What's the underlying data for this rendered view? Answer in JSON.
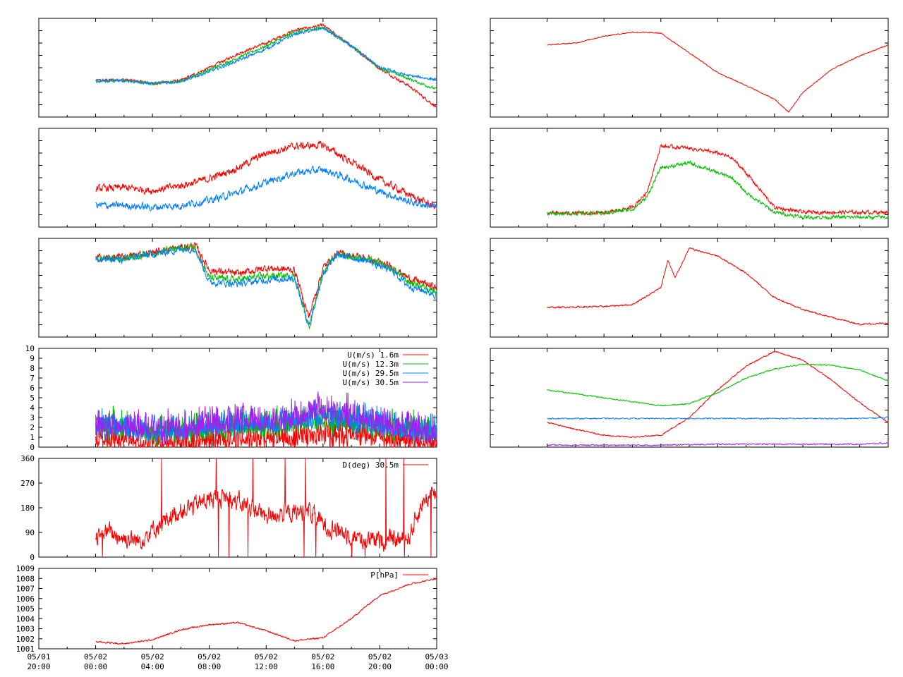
{
  "colors": {
    "red": "#ff0000",
    "green": "#00c000",
    "blue": "#0080ff",
    "purple": "#a020f0",
    "axis": "#000000",
    "background": "#ffffff"
  },
  "chart_data": [
    {
      "type": "line",
      "panel": "left-1",
      "title": "",
      "xlim": [
        "05/01 20:00",
        "05/03 00:00"
      ],
      "ylim": [
        0,
        1
      ],
      "tick_labels_shown": false,
      "series": [
        {
          "color": "red",
          "x": [
            "05/02 00:00",
            "05/02 02:00",
            "05/02 04:00",
            "05/02 06:00",
            "05/02 08:00",
            "05/02 10:00",
            "05/02 12:00",
            "05/02 14:00",
            "05/02 16:00",
            "05/02 18:00",
            "05/02 20:00",
            "05/02 22:00",
            "05/03 00:00"
          ],
          "values": [
            0.37,
            0.38,
            0.34,
            0.37,
            0.5,
            0.64,
            0.75,
            0.88,
            0.93,
            0.72,
            0.49,
            0.32,
            0.1
          ]
        },
        {
          "color": "green",
          "x": [
            "05/02 00:00",
            "05/02 02:00",
            "05/02 04:00",
            "05/02 06:00",
            "05/02 08:00",
            "05/02 10:00",
            "05/02 12:00",
            "05/02 14:00",
            "05/02 16:00",
            "05/02 18:00",
            "05/02 20:00",
            "05/02 22:00",
            "05/03 00:00"
          ],
          "values": [
            0.36,
            0.37,
            0.34,
            0.36,
            0.48,
            0.6,
            0.72,
            0.86,
            0.91,
            0.72,
            0.5,
            0.39,
            0.28
          ]
        },
        {
          "color": "blue",
          "x": [
            "05/02 00:00",
            "05/02 02:00",
            "05/02 04:00",
            "05/02 06:00",
            "05/02 08:00",
            "05/02 10:00",
            "05/02 12:00",
            "05/02 14:00",
            "05/02 16:00",
            "05/02 18:00",
            "05/02 20:00",
            "05/02 22:00",
            "05/03 00:00"
          ],
          "values": [
            0.36,
            0.37,
            0.34,
            0.36,
            0.46,
            0.57,
            0.69,
            0.84,
            0.9,
            0.72,
            0.5,
            0.42,
            0.38
          ]
        }
      ]
    },
    {
      "type": "line",
      "panel": "left-2",
      "title": "",
      "xlim": [
        "05/01 20:00",
        "05/03 00:00"
      ],
      "ylim": [
        0,
        1
      ],
      "tick_labels_shown": false,
      "series": [
        {
          "color": "red",
          "x": [
            "05/02 00:00",
            "05/02 02:00",
            "05/02 04:00",
            "05/02 06:00",
            "05/02 08:00",
            "05/02 10:00",
            "05/02 12:00",
            "05/02 14:00",
            "05/02 16:00",
            "05/02 18:00",
            "05/02 20:00",
            "05/02 22:00",
            "05/03 00:00"
          ],
          "values": [
            0.39,
            0.4,
            0.37,
            0.42,
            0.49,
            0.6,
            0.75,
            0.82,
            0.83,
            0.66,
            0.48,
            0.33,
            0.2
          ]
        },
        {
          "color": "blue",
          "x": [
            "05/02 00:00",
            "05/02 02:00",
            "05/02 04:00",
            "05/02 06:00",
            "05/02 08:00",
            "05/02 10:00",
            "05/02 12:00",
            "05/02 14:00",
            "05/02 16:00",
            "05/02 18:00",
            "05/02 20:00",
            "05/02 22:00",
            "05/03 00:00"
          ],
          "values": [
            0.22,
            0.22,
            0.2,
            0.22,
            0.27,
            0.35,
            0.45,
            0.55,
            0.58,
            0.48,
            0.36,
            0.26,
            0.2
          ]
        }
      ]
    },
    {
      "type": "line",
      "panel": "left-3",
      "title": "",
      "xlim": [
        "05/01 20:00",
        "05/03 00:00"
      ],
      "ylim": [
        0,
        1
      ],
      "tick_labels_shown": false,
      "series": [
        {
          "color": "red",
          "x": [
            "05/02 00:00",
            "05/02 02:00",
            "05/02 04:00",
            "05/02 06:00",
            "05/02 07:00",
            "05/02 08:00",
            "05/02 10:00",
            "05/02 12:00",
            "05/02 14:00",
            "05/02 15:00",
            "05/02 16:00",
            "05/02 17:00",
            "05/02 19:00",
            "05/02 21:00",
            "05/02 22:00",
            "05/03 00:00"
          ],
          "values": [
            0.8,
            0.81,
            0.86,
            0.91,
            0.93,
            0.68,
            0.64,
            0.7,
            0.68,
            0.2,
            0.7,
            0.85,
            0.8,
            0.7,
            0.6,
            0.5
          ]
        },
        {
          "color": "green",
          "x": [
            "05/02 00:00",
            "05/02 02:00",
            "05/02 04:00",
            "05/02 06:00",
            "05/02 07:00",
            "05/02 08:00",
            "05/02 10:00",
            "05/02 12:00",
            "05/02 14:00",
            "05/02 15:00",
            "05/02 16:00",
            "05/02 17:00",
            "05/02 19:00",
            "05/02 21:00",
            "05/02 22:00",
            "05/03 00:00"
          ],
          "values": [
            0.79,
            0.8,
            0.85,
            0.9,
            0.91,
            0.6,
            0.58,
            0.62,
            0.62,
            0.1,
            0.66,
            0.84,
            0.79,
            0.68,
            0.56,
            0.47
          ]
        },
        {
          "color": "blue",
          "x": [
            "05/02 00:00",
            "05/02 02:00",
            "05/02 04:00",
            "05/02 06:00",
            "05/02 07:00",
            "05/02 08:00",
            "05/02 10:00",
            "05/02 12:00",
            "05/02 14:00",
            "05/02 15:00",
            "05/02 16:00",
            "05/02 17:00",
            "05/02 19:00",
            "05/02 21:00",
            "05/02 22:00",
            "05/03 00:00"
          ],
          "values": [
            0.78,
            0.79,
            0.84,
            0.89,
            0.9,
            0.56,
            0.54,
            0.58,
            0.6,
            0.12,
            0.64,
            0.83,
            0.78,
            0.66,
            0.52,
            0.43
          ]
        }
      ]
    },
    {
      "type": "line",
      "panel": "left-4",
      "title": "",
      "xlim": [
        "05/01 20:00",
        "05/03 00:00"
      ],
      "ylim": [
        0,
        10
      ],
      "yticks": [
        0,
        1,
        2,
        3,
        4,
        5,
        6,
        7,
        8,
        9,
        10
      ],
      "legend_position": "top-right",
      "series": [
        {
          "name": "U(m/s)  1.6m",
          "color": "red",
          "x": [
            "05/02 00:00",
            "05/02 02:00",
            "05/02 04:00",
            "05/02 06:00",
            "05/02 08:00",
            "05/02 10:00",
            "05/02 12:00",
            "05/02 14:00",
            "05/02 16:00",
            "05/02 18:00",
            "05/02 20:00",
            "05/02 22:00",
            "05/03 00:00"
          ],
          "values": [
            0.8,
            0.7,
            0.6,
            0.5,
            0.6,
            0.8,
            0.8,
            0.9,
            1.2,
            1.3,
            1.0,
            0.6,
            0.5
          ]
        },
        {
          "name": "U(m/s) 12.3m",
          "color": "green",
          "x": [
            "05/02 00:00",
            "05/02 02:00",
            "05/02 04:00",
            "05/02 06:00",
            "05/02 08:00",
            "05/02 10:00",
            "05/02 12:00",
            "05/02 14:00",
            "05/02 16:00",
            "05/02 18:00",
            "05/02 20:00",
            "05/02 22:00",
            "05/03 00:00"
          ],
          "values": [
            1.9,
            1.8,
            1.4,
            1.5,
            1.8,
            2.1,
            2.0,
            2.2,
            2.6,
            2.4,
            2.0,
            1.6,
            1.2
          ]
        },
        {
          "name": "U(m/s) 29.5m",
          "color": "blue",
          "x": [
            "05/02 00:00",
            "05/02 02:00",
            "05/02 04:00",
            "05/02 06:00",
            "05/02 08:00",
            "05/02 10:00",
            "05/02 12:00",
            "05/02 14:00",
            "05/02 16:00",
            "05/02 18:00",
            "05/02 20:00",
            "05/02 22:00",
            "05/03 00:00"
          ],
          "values": [
            2.0,
            1.9,
            1.5,
            1.6,
            1.9,
            2.3,
            2.2,
            2.5,
            2.9,
            2.7,
            2.2,
            1.7,
            1.3
          ]
        },
        {
          "name": "U(m/s) 30.5m",
          "color": "purple",
          "x": [
            "05/02 00:00",
            "05/02 02:00",
            "05/02 04:00",
            "05/02 06:00",
            "05/02 08:00",
            "05/02 10:00",
            "05/02 12:00",
            "05/02 14:00",
            "05/02 16:00",
            "05/02 18:00",
            "05/02 20:00",
            "05/02 22:00",
            "05/03 00:00"
          ],
          "values": [
            2.1,
            2.0,
            1.6,
            1.7,
            2.1,
            2.6,
            2.4,
            2.9,
            3.6,
            3.3,
            2.3,
            1.8,
            1.3
          ]
        }
      ]
    },
    {
      "type": "line",
      "panel": "left-5",
      "title": "",
      "xlim": [
        "05/01 20:00",
        "05/03 00:00"
      ],
      "ylim": [
        0,
        360
      ],
      "yticks": [
        0,
        90,
        180,
        270,
        360
      ],
      "legend_position": "top-right",
      "series": [
        {
          "name": "D(deg)  30.5m",
          "color": "red",
          "x": [
            "05/02 00:00",
            "05/02 01:00",
            "05/02 02:00",
            "05/02 03:00",
            "05/02 04:00",
            "05/02 05:00",
            "05/02 06:00",
            "05/02 07:00",
            "05/02 08:00",
            "05/02 09:00",
            "05/02 10:00",
            "05/02 11:00",
            "05/02 12:00",
            "05/02 13:00",
            "05/02 14:00",
            "05/02 15:00",
            "05/02 16:00",
            "05/02 17:00",
            "05/02 18:00",
            "05/02 19:00",
            "05/02 20:00",
            "05/02 21:00",
            "05/02 22:00",
            "05/02 23:00",
            "05/03 00:00"
          ],
          "values": [
            85,
            90,
            70,
            60,
            100,
            140,
            170,
            190,
            210,
            220,
            200,
            180,
            150,
            160,
            160,
            170,
            120,
            100,
            80,
            60,
            60,
            60,
            70,
            200,
            240
          ]
        }
      ]
    },
    {
      "type": "line",
      "panel": "left-6",
      "title": "",
      "xlim": [
        "05/01 20:00",
        "05/03 00:00"
      ],
      "ylim": [
        1001,
        1009
      ],
      "yticks": [
        1001,
        1002,
        1003,
        1004,
        1005,
        1006,
        1007,
        1008,
        1009
      ],
      "xticks": [
        "05/01\n20:00",
        "05/02\n00:00",
        "05/02\n04:00",
        "05/02\n08:00",
        "05/02\n12:00",
        "05/02\n16:00",
        "05/02\n20:00",
        "05/03\n00:00"
      ],
      "legend_position": "top-right",
      "series": [
        {
          "name": "P[hPa]",
          "color": "red",
          "x": [
            "05/02 00:00",
            "05/02 02:00",
            "05/02 04:00",
            "05/02 06:00",
            "05/02 08:00",
            "05/02 10:00",
            "05/02 12:00",
            "05/02 14:00",
            "05/02 16:00",
            "05/02 18:00",
            "05/02 19:00",
            "05/02 20:00",
            "05/02 22:00",
            "05/03 00:00"
          ],
          "values": [
            1001.7,
            1001.5,
            1001.9,
            1002.9,
            1003.4,
            1003.6,
            1002.8,
            1001.8,
            1002.1,
            1004.0,
            1005.2,
            1006.3,
            1007.4,
            1008.0
          ]
        }
      ]
    },
    {
      "type": "line",
      "panel": "right-1",
      "title": "",
      "xlim": [
        "05/01 20:00",
        "05/03 00:00"
      ],
      "ylim": [
        0,
        1
      ],
      "tick_labels_shown": false,
      "series": [
        {
          "color": "red",
          "x": [
            "05/02 00:00",
            "05/02 02:00",
            "05/02 04:00",
            "05/02 06:00",
            "05/02 08:00",
            "05/02 10:00",
            "05/02 12:00",
            "05/02 14:00",
            "05/02 16:00",
            "05/02 17:00",
            "05/02 18:00",
            "05/02 20:00",
            "05/02 22:00",
            "05/03 00:00"
          ],
          "values": [
            0.73,
            0.75,
            0.82,
            0.86,
            0.85,
            0.65,
            0.45,
            0.32,
            0.18,
            0.05,
            0.25,
            0.48,
            0.62,
            0.73
          ]
        }
      ]
    },
    {
      "type": "line",
      "panel": "right-2",
      "title": "",
      "xlim": [
        "05/01 20:00",
        "05/03 00:00"
      ],
      "ylim": [
        0,
        1
      ],
      "tick_labels_shown": false,
      "series": [
        {
          "color": "red",
          "x": [
            "05/02 00:00",
            "05/02 04:00",
            "05/02 06:00",
            "05/02 07:00",
            "05/02 08:00",
            "05/02 10:00",
            "05/02 12:00",
            "05/02 13:00",
            "05/02 14:00",
            "05/02 16:00",
            "05/02 18:00",
            "05/03 00:00"
          ],
          "values": [
            0.14,
            0.14,
            0.2,
            0.35,
            0.82,
            0.8,
            0.75,
            0.7,
            0.55,
            0.2,
            0.15,
            0.15
          ]
        },
        {
          "color": "green",
          "x": [
            "05/02 00:00",
            "05/02 04:00",
            "05/02 06:00",
            "05/02 07:00",
            "05/02 08:00",
            "05/02 10:00",
            "05/02 12:00",
            "05/02 13:00",
            "05/02 14:00",
            "05/02 16:00",
            "05/02 18:00",
            "05/03 00:00"
          ],
          "values": [
            0.14,
            0.14,
            0.18,
            0.3,
            0.6,
            0.65,
            0.55,
            0.5,
            0.35,
            0.15,
            0.1,
            0.1
          ]
        }
      ]
    },
    {
      "type": "line",
      "panel": "right-3",
      "title": "",
      "xlim": [
        "05/01 20:00",
        "05/03 00:00"
      ],
      "ylim": [
        0,
        1
      ],
      "tick_labels_shown": false,
      "series": [
        {
          "color": "red",
          "x": [
            "05/02 00:00",
            "05/02 04:00",
            "05/02 06:00",
            "05/02 08:00",
            "05/02 08:30",
            "05/02 09:00",
            "05/02 10:00",
            "05/02 12:00",
            "05/02 14:00",
            "05/02 16:00",
            "05/02 18:00",
            "05/02 20:00",
            "05/02 22:00",
            "05/03 00:00"
          ],
          "values": [
            0.3,
            0.31,
            0.33,
            0.5,
            0.78,
            0.6,
            0.9,
            0.82,
            0.65,
            0.4,
            0.28,
            0.2,
            0.13,
            0.14
          ]
        }
      ]
    },
    {
      "type": "line",
      "panel": "right-4",
      "title": "",
      "xlim": [
        "05/01 20:00",
        "05/03 00:00"
      ],
      "ylim": [
        0,
        1
      ],
      "tick_labels_shown": false,
      "series": [
        {
          "color": "red",
          "x": [
            "05/02 00:00",
            "05/02 02:00",
            "05/02 04:00",
            "05/02 06:00",
            "05/02 08:00",
            "05/02 10:00",
            "05/02 12:00",
            "05/02 14:00",
            "05/02 16:00",
            "05/02 18:00",
            "05/02 20:00",
            "05/02 22:00",
            "05/03 00:00"
          ],
          "values": [
            0.25,
            0.18,
            0.12,
            0.1,
            0.12,
            0.3,
            0.58,
            0.82,
            0.97,
            0.88,
            0.68,
            0.45,
            0.25
          ]
        },
        {
          "color": "green",
          "x": [
            "05/02 00:00",
            "05/02 02:00",
            "05/02 04:00",
            "05/02 06:00",
            "05/02 08:00",
            "05/02 10:00",
            "05/02 12:00",
            "05/02 14:00",
            "05/02 16:00",
            "05/02 18:00",
            "05/02 20:00",
            "05/02 22:00",
            "05/03 00:00"
          ],
          "values": [
            0.58,
            0.54,
            0.5,
            0.46,
            0.42,
            0.44,
            0.55,
            0.7,
            0.79,
            0.84,
            0.83,
            0.78,
            0.67
          ]
        },
        {
          "color": "blue",
          "x": [
            "05/02 00:00",
            "05/02 02:00",
            "05/02 04:00",
            "05/02 06:00",
            "05/02 08:00",
            "05/02 10:00",
            "05/02 12:00",
            "05/02 14:00",
            "05/02 16:00",
            "05/02 18:00",
            "05/02 20:00",
            "05/02 22:00",
            "05/03 00:00"
          ],
          "values": [
            0.29,
            0.29,
            0.29,
            0.29,
            0.29,
            0.29,
            0.29,
            0.29,
            0.29,
            0.29,
            0.29,
            0.29,
            0.3
          ]
        },
        {
          "color": "purple",
          "x": [
            "05/02 00:00",
            "05/02 02:00",
            "05/02 04:00",
            "05/02 06:00",
            "05/02 08:00",
            "05/02 10:00",
            "05/02 12:00",
            "05/02 14:00",
            "05/02 16:00",
            "05/02 18:00",
            "05/02 20:00",
            "05/02 22:00",
            "05/03 00:00"
          ],
          "values": [
            0.02,
            0.02,
            0.02,
            0.02,
            0.02,
            0.025,
            0.03,
            0.03,
            0.03,
            0.03,
            0.03,
            0.03,
            0.04
          ]
        }
      ]
    }
  ]
}
